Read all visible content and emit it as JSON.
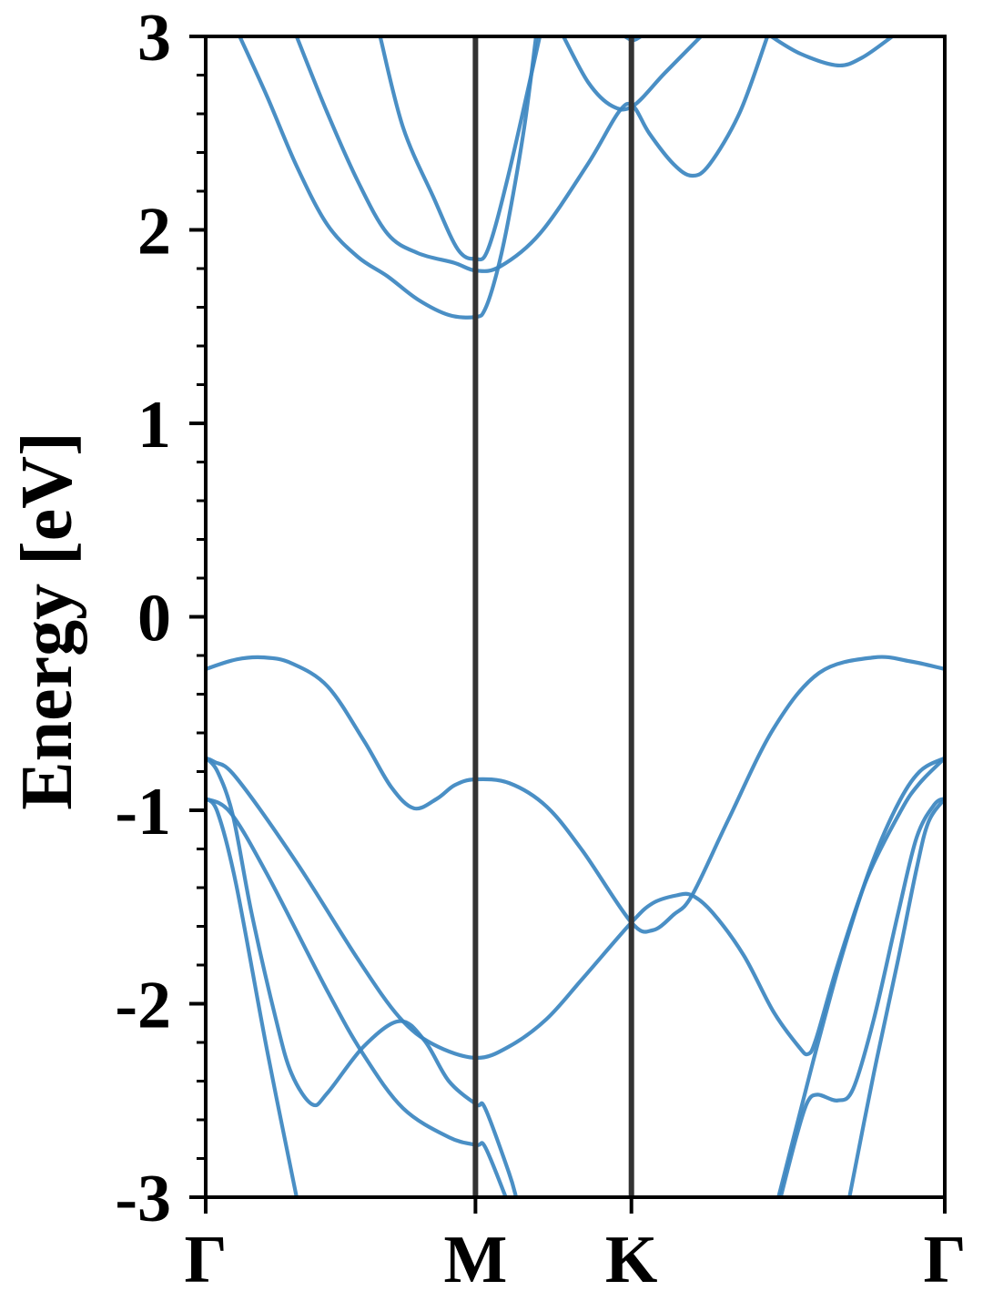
{
  "chart_data": {
    "type": "line",
    "title": "",
    "xlabel": "",
    "ylabel": "Energy [eV]",
    "ylim": [
      -3,
      3
    ],
    "xlim": [
      0,
      1
    ],
    "y_ticks": [
      -3,
      -2,
      -1,
      0,
      1,
      2,
      3
    ],
    "y_tick_labels": [
      "-3",
      "-2",
      "-1",
      "0",
      "1",
      "2",
      "3"
    ],
    "y_minor_step": 0.2,
    "x_ticks": [
      {
        "label": "Γ",
        "k": 0
      },
      {
        "label": "M",
        "k": 0.365
      },
      {
        "label": "K",
        "k": 0.576
      },
      {
        "label": "Γ",
        "k": 1
      }
    ],
    "high_symmetry_lines": [
      "M",
      "K"
    ],
    "grid": false,
    "legend": "none",
    "colors": {
      "band": "#3b86c0",
      "symmetry_line": "#333333",
      "axis": "#000000"
    },
    "series": [
      {
        "points": [
          [
            0,
            -0.27
          ],
          [
            0.042,
            -0.22
          ],
          [
            0.079,
            -0.21
          ],
          [
            0.116,
            -0.24
          ],
          [
            0.165,
            -0.36
          ],
          [
            0.214,
            -0.64
          ],
          [
            0.251,
            -0.88
          ],
          [
            0.282,
            -0.99
          ],
          [
            0.313,
            -0.94
          ],
          [
            0.337,
            -0.87
          ],
          [
            0.365,
            -0.84
          ],
          [
            0.411,
            -0.86
          ],
          [
            0.461,
            -0.98
          ],
          [
            0.51,
            -1.21
          ],
          [
            0.576,
            -1.58
          ],
          [
            0.605,
            -1.62
          ],
          [
            0.633,
            -1.54
          ],
          [
            0.658,
            -1.44
          ],
          [
            0.707,
            -1.05
          ],
          [
            0.768,
            -0.58
          ],
          [
            0.83,
            -0.29
          ],
          [
            0.904,
            -0.21
          ],
          [
            0.953,
            -0.23
          ],
          [
            1,
            -0.27
          ]
        ]
      },
      {
        "points": [
          [
            0,
            -0.73
          ],
          [
            0.012,
            -0.75
          ],
          [
            0.041,
            -0.83
          ],
          [
            0.123,
            -1.27
          ],
          [
            0.206,
            -1.77
          ],
          [
            0.262,
            -2.07
          ],
          [
            0.308,
            -2.21
          ],
          [
            0.366,
            -2.28
          ],
          [
            0.411,
            -2.22
          ],
          [
            0.461,
            -2.08
          ],
          [
            0.51,
            -1.87
          ],
          [
            0.576,
            -1.58
          ],
          [
            0.605,
            -1.48
          ],
          [
            0.637,
            -1.44
          ],
          [
            0.658,
            -1.44
          ],
          [
            0.686,
            -1.53
          ],
          [
            0.728,
            -1.75
          ],
          [
            0.768,
            -2.04
          ],
          [
            0.802,
            -2.22
          ],
          [
            0.815,
            -2.26
          ],
          [
            0.826,
            -2.18
          ],
          [
            0.855,
            -1.8
          ],
          [
            0.895,
            -1.35
          ],
          [
            0.941,
            -1.0
          ],
          [
            0.966,
            -0.86
          ],
          [
            1,
            -0.73
          ]
        ]
      },
      {
        "points": [
          [
            0,
            -0.73
          ],
          [
            0.016,
            -0.8
          ],
          [
            0.037,
            -1.03
          ],
          [
            0.062,
            -1.53
          ],
          [
            0.095,
            -2.08
          ],
          [
            0.116,
            -2.36
          ],
          [
            0.144,
            -2.52
          ],
          [
            0.165,
            -2.46
          ],
          [
            0.214,
            -2.22
          ],
          [
            0.262,
            -2.09
          ],
          [
            0.296,
            -2.19
          ],
          [
            0.329,
            -2.4
          ],
          [
            0.366,
            -2.52
          ],
          [
            0.378,
            -2.54
          ],
          [
            0.41,
            -2.87
          ],
          [
            0.42,
            -3.0
          ]
        ]
      },
      {
        "points": [
          [
            0,
            -0.94
          ],
          [
            0.016,
            -1.01
          ],
          [
            0.041,
            -1.38
          ],
          [
            0.083,
            -2.24
          ],
          [
            0.123,
            -3.0
          ]
        ]
      },
      {
        "points": [
          [
            0,
            -0.94
          ],
          [
            0.033,
            -1.01
          ],
          [
            0.083,
            -1.33
          ],
          [
            0.164,
            -1.93
          ],
          [
            0.213,
            -2.26
          ],
          [
            0.267,
            -2.54
          ],
          [
            0.329,
            -2.69
          ],
          [
            0.366,
            -2.73
          ],
          [
            0.378,
            -2.74
          ],
          [
            0.406,
            -3.0
          ]
        ]
      },
      {
        "points": [
          [
            0.775,
            -3.0
          ],
          [
            0.805,
            -2.55
          ],
          [
            0.83,
            -2.18
          ],
          [
            0.861,
            -1.75
          ],
          [
            0.898,
            -1.31
          ],
          [
            0.935,
            -0.98
          ],
          [
            0.966,
            -0.8
          ],
          [
            1,
            -0.73
          ]
        ]
      },
      {
        "points": [
          [
            0.871,
            -3.0
          ],
          [
            0.904,
            -2.36
          ],
          [
            0.937,
            -1.77
          ],
          [
            0.962,
            -1.3
          ],
          [
            0.978,
            -1.06
          ],
          [
            1,
            -0.94
          ]
        ]
      },
      {
        "points": [
          [
            0.778,
            -3.0
          ],
          [
            0.799,
            -2.69
          ],
          [
            0.814,
            -2.51
          ],
          [
            0.828,
            -2.47
          ],
          [
            0.855,
            -2.5
          ],
          [
            0.876,
            -2.44
          ],
          [
            0.904,
            -2.08
          ],
          [
            0.937,
            -1.53
          ],
          [
            0.962,
            -1.14
          ],
          [
            0.986,
            -0.97
          ],
          [
            1,
            -0.94
          ]
        ]
      },
      {
        "points": [
          [
            0.046,
            3.0
          ],
          [
            0.083,
            2.69
          ],
          [
            0.123,
            2.33
          ],
          [
            0.164,
            2.03
          ],
          [
            0.206,
            1.86
          ],
          [
            0.246,
            1.76
          ],
          [
            0.287,
            1.64
          ],
          [
            0.329,
            1.56
          ],
          [
            0.365,
            1.55
          ],
          [
            0.378,
            1.59
          ],
          [
            0.394,
            1.78
          ],
          [
            0.41,
            2.06
          ],
          [
            0.431,
            2.53
          ],
          [
            0.447,
            3.0
          ]
        ]
      },
      {
        "points": [
          [
            0.123,
            3.0
          ],
          [
            0.164,
            2.61
          ],
          [
            0.206,
            2.25
          ],
          [
            0.246,
            1.98
          ],
          [
            0.287,
            1.88
          ],
          [
            0.336,
            1.83
          ],
          [
            0.365,
            1.79
          ],
          [
            0.398,
            1.81
          ],
          [
            0.452,
            1.98
          ],
          [
            0.517,
            2.34
          ],
          [
            0.559,
            2.61
          ],
          [
            0.578,
            2.64
          ],
          [
            0.6,
            2.5
          ],
          [
            0.633,
            2.34
          ],
          [
            0.658,
            2.28
          ],
          [
            0.682,
            2.34
          ],
          [
            0.723,
            2.61
          ],
          [
            0.76,
            3.0
          ]
        ]
      },
      {
        "points": [
          [
            0.236,
            3.0
          ],
          [
            0.267,
            2.53
          ],
          [
            0.308,
            2.17
          ],
          [
            0.341,
            1.9
          ],
          [
            0.365,
            1.85
          ],
          [
            0.382,
            1.9
          ],
          [
            0.41,
            2.29
          ],
          [
            0.452,
            3.0
          ]
        ]
      },
      {
        "points": [
          [
            0.484,
            3.0
          ],
          [
            0.518,
            2.76
          ],
          [
            0.55,
            2.64
          ],
          [
            0.578,
            2.64
          ],
          [
            0.621,
            2.81
          ],
          [
            0.67,
            3.0
          ]
        ]
      },
      {
        "points": [
          [
            0.567,
            3.0
          ],
          [
            0.578,
            2.98
          ],
          [
            0.589,
            3.0
          ]
        ]
      },
      {
        "points": [
          [
            0.765,
            3.0
          ],
          [
            0.805,
            2.91
          ],
          [
            0.855,
            2.85
          ],
          [
            0.888,
            2.89
          ],
          [
            0.929,
            3.0
          ]
        ]
      }
    ]
  }
}
